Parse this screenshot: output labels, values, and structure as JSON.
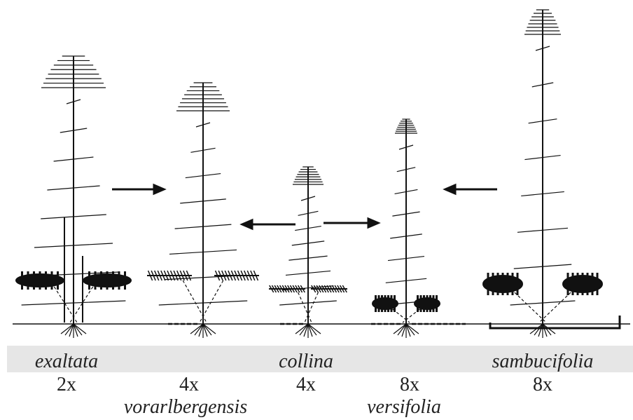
{
  "taxa": [
    {
      "name": "exaltata",
      "ploidy": "2x"
    },
    {
      "name": "vorarlbergensis",
      "ploidy": "4x"
    },
    {
      "name": "collina",
      "ploidy": "4x"
    },
    {
      "name": "versifolia",
      "ploidy": "8x"
    },
    {
      "name": "sambucifolia",
      "ploidy": "8x"
    }
  ]
}
